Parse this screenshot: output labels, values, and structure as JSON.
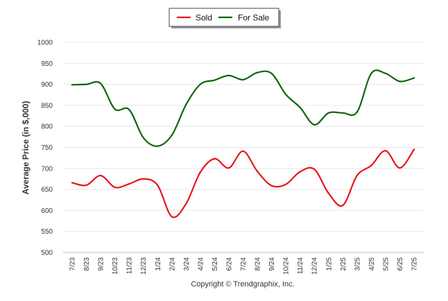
{
  "chart_data": {
    "type": "line",
    "title": "",
    "xlabel": "",
    "ylabel": "Average Price (in $,000)",
    "ylim": [
      500,
      1000
    ],
    "yticks": [
      500,
      550,
      600,
      650,
      700,
      750,
      800,
      850,
      900,
      950,
      1000
    ],
    "grid": true,
    "legend_position": "top-center",
    "categories": [
      "7/23",
      "8/23",
      "9/23",
      "10/23",
      "11/23",
      "12/23",
      "1/24",
      "2/24",
      "3/24",
      "4/24",
      "5/24",
      "6/24",
      "7/24",
      "8/24",
      "9/24",
      "10/24",
      "11/24",
      "12/24",
      "1/25",
      "2/25",
      "3/25",
      "4/25",
      "5/25",
      "6/25",
      "7/25"
    ],
    "series": [
      {
        "name": "Sold",
        "color": "#e8141c",
        "values": [
          666,
          660,
          683,
          655,
          663,
          675,
          660,
          585,
          616,
          691,
          723,
          701,
          741,
          693,
          659,
          662,
          692,
          698,
          641,
          612,
          683,
          707,
          742,
          701,
          745
        ]
      },
      {
        "name": "For Sale",
        "color": "#13640f",
        "values": [
          899,
          900,
          902,
          841,
          840,
          773,
          753,
          779,
          852,
          900,
          910,
          921,
          911,
          928,
          926,
          876,
          845,
          804,
          832,
          832,
          834,
          926,
          926,
          907,
          915
        ]
      }
    ]
  },
  "credit": "Copyright © Trendgraphix, Inc."
}
